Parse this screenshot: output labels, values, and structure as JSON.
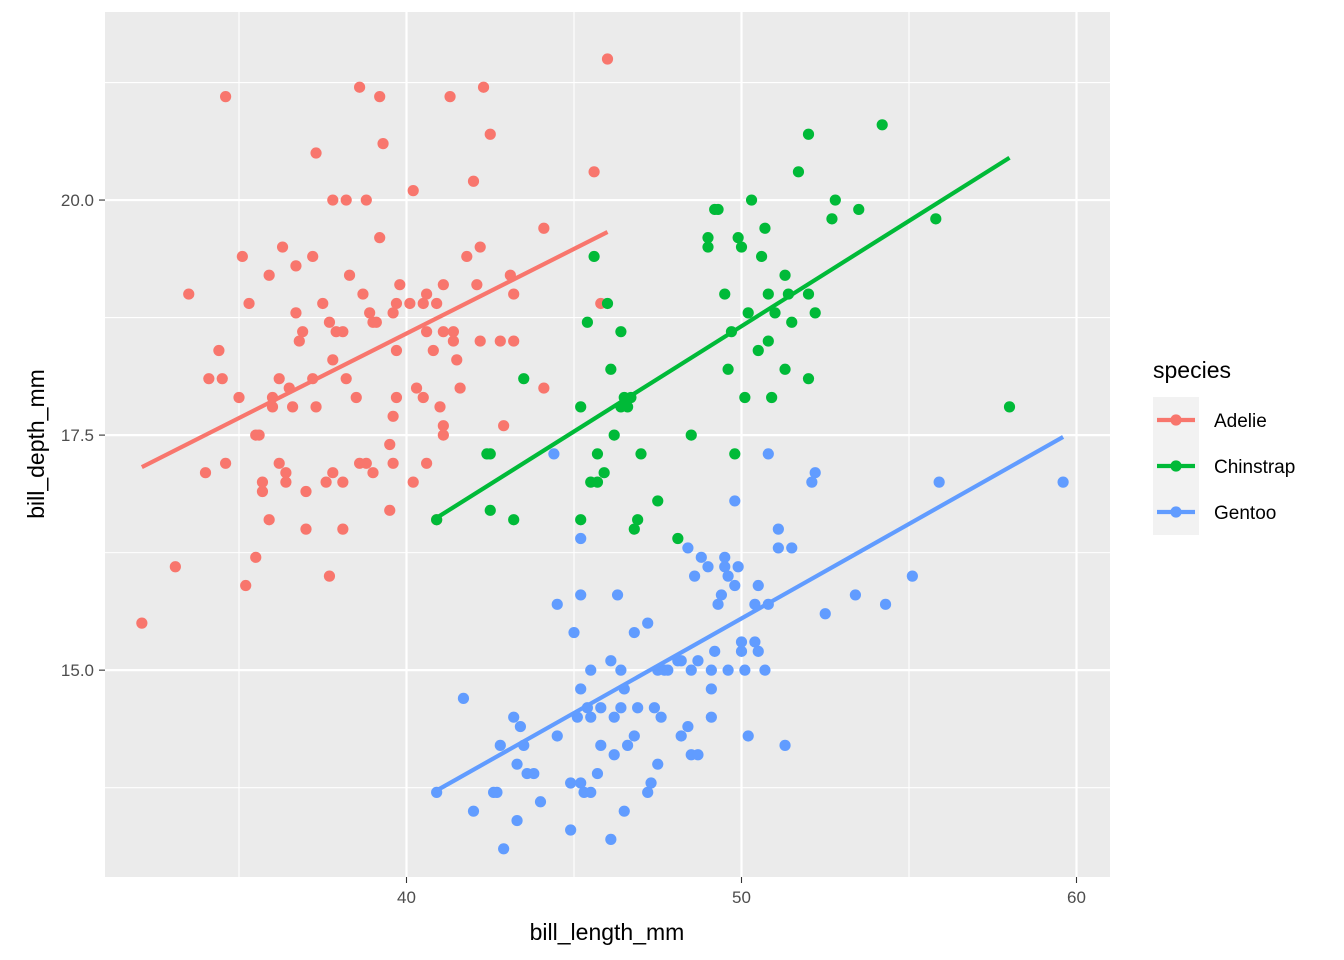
{
  "chart_data": {
    "type": "scatter",
    "title": "",
    "xlabel": "bill_length_mm",
    "ylabel": "bill_depth_mm",
    "xlim": [
      31.0,
      61.0
    ],
    "ylim": [
      12.8,
      22.0
    ],
    "x_ticks": [
      40,
      50,
      60
    ],
    "x_tick_labels": [
      "40",
      "50",
      "60"
    ],
    "y_ticks": [
      15.0,
      17.5,
      20.0
    ],
    "y_tick_labels": [
      "15.0",
      "17.5",
      "20.0"
    ],
    "grid": true,
    "legend": {
      "title": "species",
      "placement": "right"
    },
    "series": [
      {
        "name": "Adelie",
        "color": "#F8766D",
        "fit": {
          "x": [
            32.1,
            46.0
          ],
          "y": [
            17.16,
            19.66
          ]
        },
        "points": [
          [
            32.1,
            15.5
          ],
          [
            33.1,
            16.1
          ],
          [
            33.5,
            19.0
          ],
          [
            34.0,
            17.1
          ],
          [
            34.1,
            18.1
          ],
          [
            34.4,
            18.4
          ],
          [
            34.5,
            18.1
          ],
          [
            34.6,
            21.1
          ],
          [
            34.6,
            17.2
          ],
          [
            35.0,
            17.9
          ],
          [
            35.1,
            19.4
          ],
          [
            35.2,
            15.9
          ],
          [
            35.3,
            18.9
          ],
          [
            35.5,
            17.5
          ],
          [
            35.5,
            16.2
          ],
          [
            35.6,
            17.5
          ],
          [
            35.7,
            17.0
          ],
          [
            35.7,
            16.9
          ],
          [
            35.9,
            19.2
          ],
          [
            35.9,
            16.6
          ],
          [
            36.0,
            17.9
          ],
          [
            36.0,
            17.8
          ],
          [
            36.2,
            17.2
          ],
          [
            36.2,
            18.1
          ],
          [
            36.3,
            19.5
          ],
          [
            36.4,
            17.0
          ],
          [
            36.4,
            17.1
          ],
          [
            36.5,
            18.0
          ],
          [
            36.6,
            17.8
          ],
          [
            36.7,
            18.8
          ],
          [
            36.7,
            19.3
          ],
          [
            36.8,
            18.5
          ],
          [
            36.9,
            18.6
          ],
          [
            37.0,
            16.9
          ],
          [
            37.0,
            16.5
          ],
          [
            37.2,
            18.1
          ],
          [
            37.2,
            19.4
          ],
          [
            37.3,
            17.8
          ],
          [
            37.3,
            20.5
          ],
          [
            37.5,
            18.9
          ],
          [
            37.6,
            17.0
          ],
          [
            37.7,
            18.7
          ],
          [
            37.7,
            16.0
          ],
          [
            37.8,
            18.3
          ],
          [
            37.8,
            20.0
          ],
          [
            37.8,
            17.1
          ],
          [
            37.9,
            18.6
          ],
          [
            38.1,
            18.6
          ],
          [
            38.1,
            16.5
          ],
          [
            38.1,
            17.0
          ],
          [
            38.2,
            20.0
          ],
          [
            38.2,
            18.1
          ],
          [
            38.3,
            19.2
          ],
          [
            38.5,
            17.9
          ],
          [
            38.6,
            21.2
          ],
          [
            38.6,
            17.2
          ],
          [
            38.7,
            19.0
          ],
          [
            38.8,
            20.0
          ],
          [
            38.8,
            17.2
          ],
          [
            38.9,
            18.8
          ],
          [
            39.0,
            18.7
          ],
          [
            39.0,
            17.1
          ],
          [
            39.1,
            18.7
          ],
          [
            39.2,
            21.1
          ],
          [
            39.2,
            19.6
          ],
          [
            39.3,
            20.6
          ],
          [
            39.5,
            17.4
          ],
          [
            39.5,
            16.7
          ],
          [
            39.6,
            17.7
          ],
          [
            39.6,
            18.8
          ],
          [
            39.6,
            17.2
          ],
          [
            39.7,
            18.4
          ],
          [
            39.7,
            17.9
          ],
          [
            39.7,
            18.9
          ],
          [
            39.8,
            19.1
          ],
          [
            40.1,
            18.9
          ],
          [
            40.2,
            17.0
          ],
          [
            40.2,
            20.1
          ],
          [
            40.3,
            18.0
          ],
          [
            40.5,
            17.9
          ],
          [
            40.5,
            18.9
          ],
          [
            40.6,
            19.0
          ],
          [
            40.6,
            17.2
          ],
          [
            40.6,
            18.6
          ],
          [
            40.8,
            18.4
          ],
          [
            40.9,
            16.6
          ],
          [
            40.9,
            18.9
          ],
          [
            41.0,
            17.8
          ],
          [
            41.1,
            17.5
          ],
          [
            41.1,
            18.6
          ],
          [
            41.1,
            19.1
          ],
          [
            41.1,
            17.6
          ],
          [
            41.3,
            21.1
          ],
          [
            41.4,
            18.6
          ],
          [
            41.4,
            18.5
          ],
          [
            41.5,
            18.3
          ],
          [
            41.6,
            18.0
          ],
          [
            41.8,
            19.4
          ],
          [
            42.0,
            20.2
          ],
          [
            42.1,
            19.1
          ],
          [
            42.2,
            18.5
          ],
          [
            42.2,
            19.5
          ],
          [
            42.3,
            21.2
          ],
          [
            42.5,
            20.7
          ],
          [
            42.8,
            18.5
          ],
          [
            42.9,
            17.6
          ],
          [
            43.2,
            18.5
          ],
          [
            43.2,
            19.0
          ],
          [
            43.1,
            19.2
          ],
          [
            44.1,
            18.0
          ],
          [
            44.1,
            19.7
          ],
          [
            45.6,
            20.3
          ],
          [
            45.8,
            18.9
          ],
          [
            46.0,
            21.5
          ]
        ]
      },
      {
        "name": "Chinstrap",
        "color": "#00BA38",
        "fit": {
          "x": [
            40.9,
            58.0
          ],
          "y": [
            16.62,
            20.45
          ]
        },
        "points": [
          [
            40.9,
            16.6
          ],
          [
            42.4,
            17.3
          ],
          [
            42.5,
            16.7
          ],
          [
            42.5,
            17.3
          ],
          [
            43.2,
            16.6
          ],
          [
            43.5,
            18.1
          ],
          [
            45.2,
            16.6
          ],
          [
            45.2,
            17.8
          ],
          [
            45.4,
            18.7
          ],
          [
            45.5,
            17.0
          ],
          [
            45.6,
            19.4
          ],
          [
            45.7,
            17.3
          ],
          [
            45.7,
            17.0
          ],
          [
            45.9,
            17.1
          ],
          [
            46.0,
            18.9
          ],
          [
            46.1,
            18.2
          ],
          [
            46.2,
            17.5
          ],
          [
            46.4,
            18.6
          ],
          [
            46.4,
            17.8
          ],
          [
            46.5,
            17.9
          ],
          [
            46.6,
            17.8
          ],
          [
            46.7,
            17.9
          ],
          [
            46.8,
            16.5
          ],
          [
            46.9,
            16.6
          ],
          [
            47.0,
            17.3
          ],
          [
            47.5,
            16.8
          ],
          [
            48.1,
            16.4
          ],
          [
            48.5,
            17.5
          ],
          [
            49.0,
            19.5
          ],
          [
            49.0,
            19.6
          ],
          [
            49.2,
            19.9
          ],
          [
            49.3,
            19.9
          ],
          [
            49.5,
            19.0
          ],
          [
            49.6,
            18.2
          ],
          [
            49.7,
            18.6
          ],
          [
            49.8,
            17.3
          ],
          [
            49.9,
            19.6
          ],
          [
            50.0,
            19.5
          ],
          [
            50.1,
            17.9
          ],
          [
            50.2,
            18.8
          ],
          [
            50.3,
            20.0
          ],
          [
            50.5,
            18.4
          ],
          [
            50.6,
            19.4
          ],
          [
            50.7,
            19.7
          ],
          [
            50.8,
            18.5
          ],
          [
            50.8,
            19.0
          ],
          [
            50.9,
            17.9
          ],
          [
            51.0,
            18.8
          ],
          [
            51.3,
            19.2
          ],
          [
            51.3,
            18.2
          ],
          [
            51.4,
            19.0
          ],
          [
            51.5,
            18.7
          ],
          [
            51.7,
            20.3
          ],
          [
            52.0,
            18.1
          ],
          [
            52.0,
            19.0
          ],
          [
            52.0,
            20.7
          ],
          [
            52.2,
            18.8
          ],
          [
            52.7,
            19.8
          ],
          [
            52.8,
            20.0
          ],
          [
            53.5,
            19.9
          ],
          [
            54.2,
            20.8
          ],
          [
            55.8,
            19.8
          ],
          [
            58.0,
            17.8
          ]
        ]
      },
      {
        "name": "Gentoo",
        "color": "#619CFF",
        "fit": {
          "x": [
            40.9,
            59.6
          ],
          "y": [
            13.72,
            17.48
          ]
        },
        "points": [
          [
            40.9,
            13.7
          ],
          [
            41.7,
            14.7
          ],
          [
            42.0,
            13.5
          ],
          [
            42.6,
            13.7
          ],
          [
            42.7,
            13.7
          ],
          [
            42.8,
            14.2
          ],
          [
            42.9,
            13.1
          ],
          [
            43.2,
            14.5
          ],
          [
            43.3,
            13.4
          ],
          [
            43.3,
            14.0
          ],
          [
            43.4,
            14.4
          ],
          [
            43.5,
            14.2
          ],
          [
            43.6,
            13.9
          ],
          [
            43.8,
            13.9
          ],
          [
            44.0,
            13.6
          ],
          [
            44.4,
            17.3
          ],
          [
            44.5,
            14.3
          ],
          [
            44.5,
            15.7
          ],
          [
            44.9,
            13.3
          ],
          [
            44.9,
            13.8
          ],
          [
            45.0,
            15.4
          ],
          [
            45.1,
            14.5
          ],
          [
            45.2,
            13.8
          ],
          [
            45.2,
            14.8
          ],
          [
            45.2,
            15.8
          ],
          [
            45.2,
            16.4
          ],
          [
            45.3,
            13.7
          ],
          [
            45.4,
            14.6
          ],
          [
            45.5,
            13.7
          ],
          [
            45.5,
            15.0
          ],
          [
            45.5,
            14.5
          ],
          [
            45.7,
            13.9
          ],
          [
            45.8,
            14.6
          ],
          [
            45.8,
            14.2
          ],
          [
            46.1,
            13.2
          ],
          [
            46.1,
            15.1
          ],
          [
            46.2,
            14.1
          ],
          [
            46.2,
            14.5
          ],
          [
            46.3,
            15.8
          ],
          [
            46.4,
            14.6
          ],
          [
            46.4,
            15.0
          ],
          [
            46.5,
            13.5
          ],
          [
            46.5,
            14.8
          ],
          [
            46.6,
            14.2
          ],
          [
            46.8,
            14.3
          ],
          [
            46.8,
            15.4
          ],
          [
            46.9,
            14.6
          ],
          [
            47.2,
            13.7
          ],
          [
            47.2,
            15.5
          ],
          [
            47.3,
            13.8
          ],
          [
            47.4,
            14.6
          ],
          [
            47.5,
            14.0
          ],
          [
            47.5,
            15.0
          ],
          [
            47.6,
            14.5
          ],
          [
            47.7,
            15.0
          ],
          [
            47.8,
            15.0
          ],
          [
            48.1,
            15.1
          ],
          [
            48.2,
            14.3
          ],
          [
            48.2,
            15.1
          ],
          [
            48.4,
            14.4
          ],
          [
            48.4,
            16.3
          ],
          [
            48.5,
            14.1
          ],
          [
            48.5,
            15.0
          ],
          [
            48.6,
            16.0
          ],
          [
            48.7,
            14.1
          ],
          [
            48.7,
            15.1
          ],
          [
            48.8,
            16.2
          ],
          [
            49.0,
            16.1
          ],
          [
            49.1,
            14.5
          ],
          [
            49.1,
            14.8
          ],
          [
            49.1,
            15.0
          ],
          [
            49.2,
            15.2
          ],
          [
            49.3,
            15.7
          ],
          [
            49.4,
            15.8
          ],
          [
            49.5,
            16.2
          ],
          [
            49.5,
            16.1
          ],
          [
            49.6,
            15.0
          ],
          [
            49.6,
            16.0
          ],
          [
            49.8,
            15.9
          ],
          [
            49.8,
            16.8
          ],
          [
            49.9,
            16.1
          ],
          [
            50.0,
            15.2
          ],
          [
            50.0,
            15.3
          ],
          [
            50.1,
            15.0
          ],
          [
            50.2,
            14.3
          ],
          [
            50.4,
            15.3
          ],
          [
            50.4,
            15.7
          ],
          [
            50.5,
            15.2
          ],
          [
            50.5,
            15.9
          ],
          [
            50.7,
            15.0
          ],
          [
            50.8,
            15.7
          ],
          [
            50.8,
            17.3
          ],
          [
            51.1,
            16.3
          ],
          [
            51.1,
            16.5
          ],
          [
            51.3,
            14.2
          ],
          [
            51.5,
            16.3
          ],
          [
            52.1,
            17.0
          ],
          [
            52.2,
            17.1
          ],
          [
            52.5,
            15.6
          ],
          [
            53.4,
            15.8
          ],
          [
            54.3,
            15.7
          ],
          [
            55.1,
            16.0
          ],
          [
            55.9,
            17.0
          ],
          [
            59.6,
            17.0
          ]
        ]
      }
    ]
  }
}
